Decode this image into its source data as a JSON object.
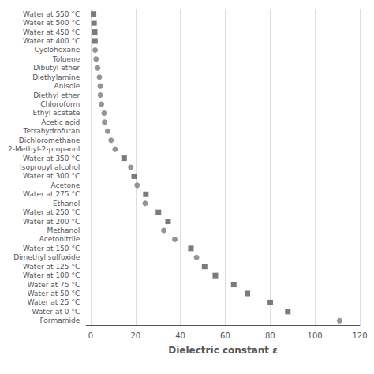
{
  "chart_data": {
    "type": "scatter",
    "orientation": "horizontal",
    "x_label": "Dielectric constant ε",
    "categories": [
      "Water at 550 °C",
      "Water at 500 °C",
      "Water at 450 °C",
      "Water at 400 °C",
      "Cyclohexane",
      "Toluene",
      "Dibutyl ether",
      "Diethylamine",
      "Anisole",
      "Diethyl ether",
      "Chloroform",
      "Ethyl acetate",
      "Acetic acid",
      "Tetrahydrofuran",
      "Dichloromethane",
      "2-Methyl-2-propanol",
      "Water at 350 °C",
      "Isopropyl alcohol",
      "Water at 300 °C",
      "Acetone",
      "Water at 275 °C",
      "Ethanol",
      "Water at 250 °C",
      "Water at 200 °C",
      "Methanol",
      "Acetonitrile",
      "Water at 150 °C",
      "Dimethyl sulfoxide",
      "Water at 125 °C",
      "Water at 100 °C",
      "Water at 75 °C",
      "Water at 50 °C",
      "Water at 25 °C",
      "Water at 0 °C",
      "Formamide"
    ],
    "series": [
      {
        "color": "#5a5a5a",
        "marker": "square",
        "values": [
          1.3,
          1.5,
          1.8,
          1.9,
          null,
          null,
          null,
          null,
          null,
          null,
          null,
          null,
          null,
          null,
          null,
          null,
          14.9,
          null,
          19.4,
          null,
          24.6,
          null,
          30.2,
          34.5,
          null,
          null,
          44.7,
          null,
          50.8,
          55.6,
          63.8,
          69.9,
          80.1,
          87.9,
          null
        ]
      },
      {
        "color": "#7a7a7a",
        "marker": "circle",
        "values": [
          null,
          null,
          null,
          null,
          2.0,
          2.4,
          3.1,
          3.9,
          4.3,
          4.3,
          4.8,
          6.0,
          6.2,
          7.6,
          9.1,
          10.9,
          null,
          17.9,
          null,
          20.7,
          null,
          24.3,
          null,
          null,
          32.6,
          37.5,
          null,
          47.2,
          null,
          null,
          null,
          null,
          null,
          null,
          111.0
        ]
      }
    ],
    "xlim": [
      -2,
      120
    ],
    "xticks": [
      0,
      20,
      40,
      60,
      80,
      100,
      120
    ],
    "grid": true
  }
}
